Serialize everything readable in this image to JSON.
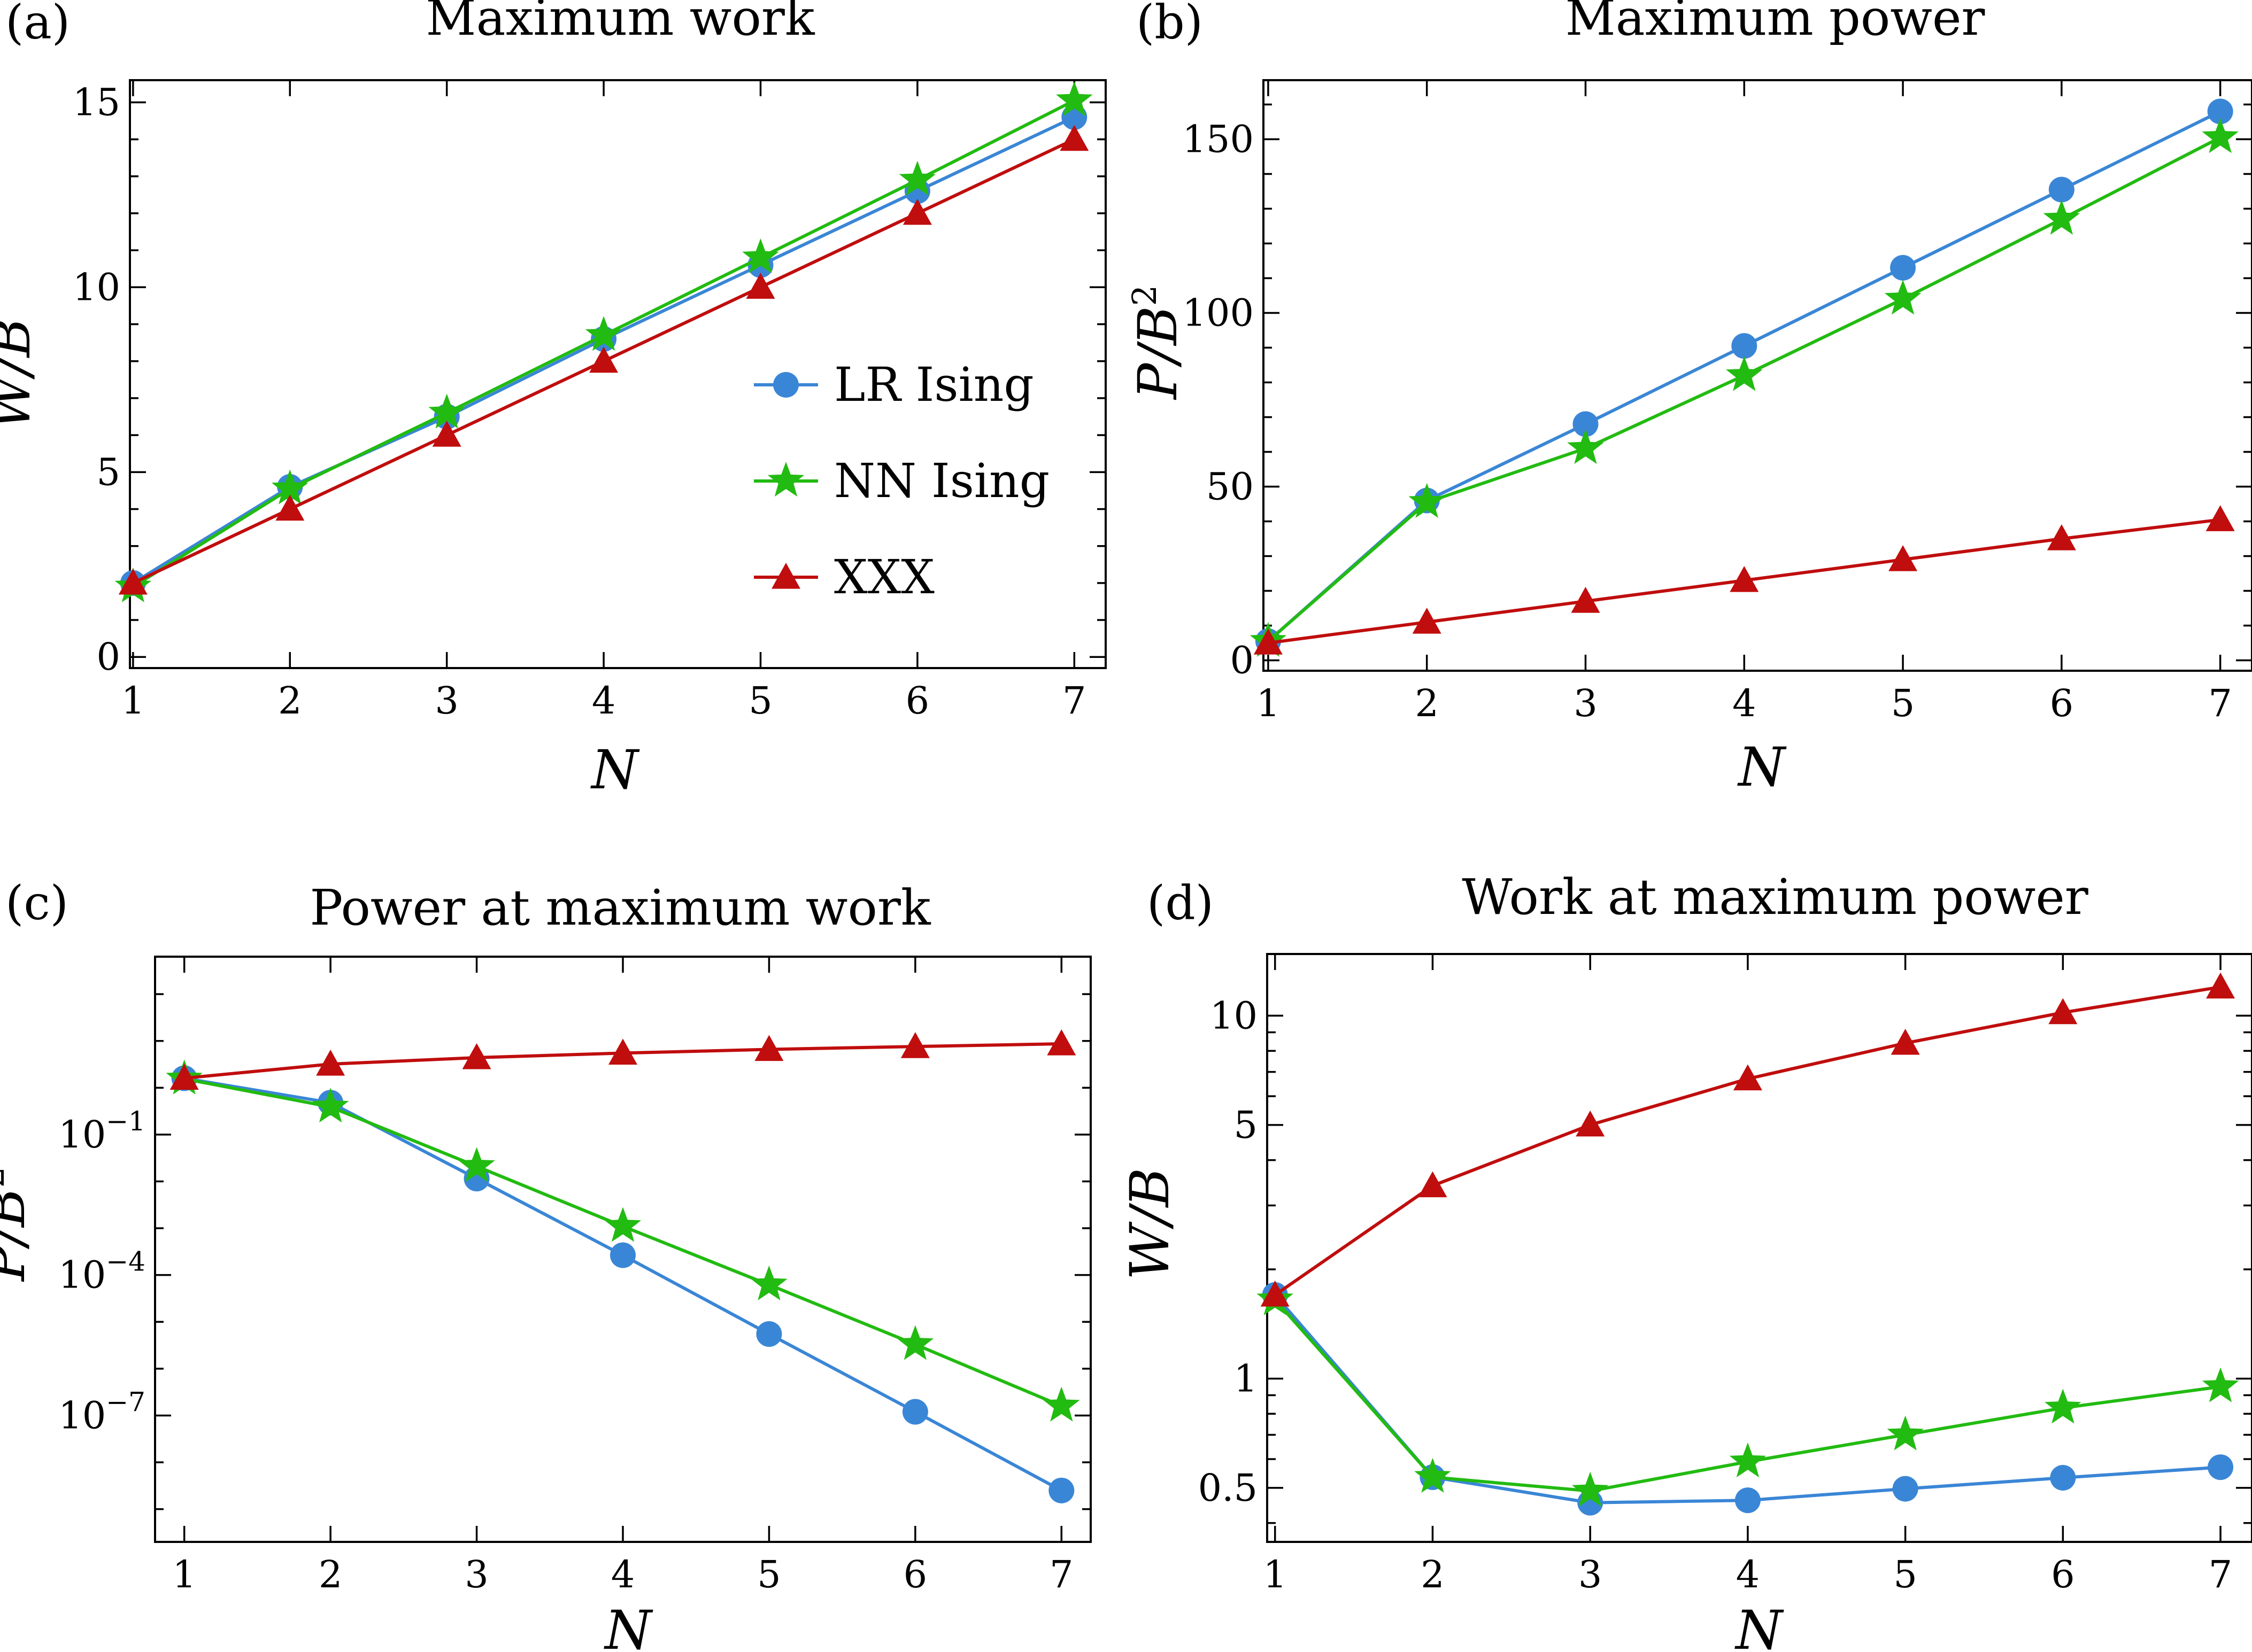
{
  "figure": {
    "series_styles": {
      "lr": {
        "name": "LR Ising",
        "color": "#3a86d6",
        "marker": "circle"
      },
      "nn": {
        "name": "NN Ising",
        "color": "#22bb11",
        "marker": "star"
      },
      "xxx": {
        "name": "XXX",
        "color": "#c00d0d",
        "marker": "triangle"
      }
    }
  },
  "chart_data": [
    {
      "id": "a",
      "panel_label": "(a)",
      "type": "line",
      "title": "Maximum work",
      "xlabel": "N",
      "ylabel": "W/B",
      "xlim": [
        0.98,
        7.2
      ],
      "ylim": [
        -0.3,
        15.6
      ],
      "yscale": "linear",
      "xticks": [
        1,
        2,
        3,
        4,
        5,
        6,
        7
      ],
      "yticks": [
        {
          "v": 0,
          "label": "0"
        },
        {
          "v": 5,
          "label": "5"
        },
        {
          "v": 10,
          "label": "10"
        },
        {
          "v": 15,
          "label": "15"
        }
      ],
      "yminor": [
        1,
        2,
        3,
        4,
        6,
        7,
        8,
        9,
        11,
        12,
        13,
        14
      ],
      "legend": {
        "position": "center-right",
        "entries": [
          "LR Ising",
          "NN Ising",
          "XXX"
        ]
      },
      "x": [
        1,
        2,
        3,
        4,
        5,
        6,
        7
      ],
      "series": [
        {
          "key": "lr",
          "name": "LR Ising",
          "values": [
            2.0,
            4.6,
            6.5,
            8.6,
            10.6,
            12.6,
            14.6
          ]
        },
        {
          "key": "nn",
          "name": "NN Ising",
          "values": [
            1.9,
            4.55,
            6.6,
            8.7,
            10.8,
            12.9,
            15.05
          ]
        },
        {
          "key": "xxx",
          "name": "XXX",
          "values": [
            2.0,
            4.0,
            6.0,
            8.0,
            10.0,
            12.0,
            14.0
          ]
        }
      ]
    },
    {
      "id": "b",
      "panel_label": "(b)",
      "type": "line",
      "title": "Maximum power",
      "xlabel": "N",
      "ylabel": "P/B²",
      "xlim": [
        0.97,
        7.2
      ],
      "ylim": [
        -3,
        167
      ],
      "yscale": "linear",
      "xticks": [
        1,
        2,
        3,
        4,
        5,
        6,
        7
      ],
      "yticks": [
        {
          "v": 0,
          "label": "0"
        },
        {
          "v": 50,
          "label": "50"
        },
        {
          "v": 100,
          "label": "100"
        },
        {
          "v": 150,
          "label": "150"
        }
      ],
      "yminor": [
        10,
        20,
        30,
        40,
        60,
        70,
        80,
        90,
        110,
        120,
        130,
        140,
        160
      ],
      "x": [
        1,
        2,
        3,
        4,
        5,
        6,
        7
      ],
      "series": [
        {
          "key": "lr",
          "name": "LR Ising",
          "values": [
            5.5,
            46,
            68,
            90.5,
            113,
            135.5,
            158
          ]
        },
        {
          "key": "nn",
          "name": "NN Ising",
          "values": [
            5.5,
            45.5,
            61,
            82,
            104,
            127,
            150.5
          ]
        },
        {
          "key": "xxx",
          "name": "XXX",
          "values": [
            5.0,
            11.0,
            17.0,
            23.0,
            29.0,
            35.0,
            40.5
          ]
        }
      ]
    },
    {
      "id": "c",
      "panel_label": "(c)",
      "type": "line",
      "title": "Power at maximum work",
      "xlabel": "N",
      "ylabel": "P/B²",
      "xlim": [
        0.8,
        7.2
      ],
      "ylim_log10": [
        -9.7,
        2.8
      ],
      "yscale": "log",
      "xticks": [
        1,
        2,
        3,
        4,
        5,
        6,
        7
      ],
      "yticks": [
        {
          "v": -1,
          "label": "10",
          "sup": "-1"
        },
        {
          "v": -4,
          "label": "10",
          "sup": "-4"
        },
        {
          "v": -7,
          "label": "10",
          "sup": "-7"
        }
      ],
      "yminor_log10": [
        2,
        1,
        0,
        -2,
        -3,
        -5,
        -6,
        -8,
        -9
      ],
      "x": [
        1,
        2,
        3,
        4,
        5,
        6,
        7
      ],
      "series": [
        {
          "key": "lr",
          "name": "LR Ising",
          "values": [
            1.6,
            0.48,
            0.0115,
            0.000265,
            5.5e-06,
            1.2e-07,
            2.5e-09
          ]
        },
        {
          "key": "nn",
          "name": "NN Ising",
          "values": [
            1.55,
            0.39,
            0.021,
            0.0011,
            6.2e-05,
            3.3e-06,
            1.6e-07
          ]
        },
        {
          "key": "xxx",
          "name": "XXX",
          "values": [
            1.6,
            3.2,
            4.4,
            5.5,
            6.6,
            7.6,
            8.7
          ]
        }
      ]
    },
    {
      "id": "d",
      "panel_label": "(d)",
      "type": "line",
      "title": "Work at maximum power",
      "xlabel": "N",
      "ylabel": "W/B",
      "xlim": [
        0.95,
        7.2
      ],
      "ylim_log10": [
        -0.45,
        1.17
      ],
      "yscale": "log",
      "xticks": [
        1,
        2,
        3,
        4,
        5,
        6,
        7
      ],
      "yticks": [
        {
          "v": 0.5,
          "label": "0.5"
        },
        {
          "v": 1,
          "label": "1"
        },
        {
          "v": 5,
          "label": "5"
        },
        {
          "v": 10,
          "label": "10"
        }
      ],
      "yminor": [
        0.4,
        0.6,
        0.7,
        0.8,
        0.9,
        2,
        3,
        4,
        6,
        7,
        8,
        9
      ],
      "x": [
        1,
        2,
        3,
        4,
        5,
        6,
        7
      ],
      "series": [
        {
          "key": "lr",
          "name": "LR Ising",
          "values": [
            1.7,
            0.535,
            0.455,
            0.462,
            0.497,
            0.533,
            0.57
          ]
        },
        {
          "key": "nn",
          "name": "NN Ising",
          "values": [
            1.65,
            0.535,
            0.49,
            0.59,
            0.7,
            0.83,
            0.95
          ]
        },
        {
          "key": "xxx",
          "name": "XXX",
          "values": [
            1.7,
            3.4,
            5.0,
            6.7,
            8.4,
            10.2,
            12.0
          ]
        }
      ]
    }
  ]
}
